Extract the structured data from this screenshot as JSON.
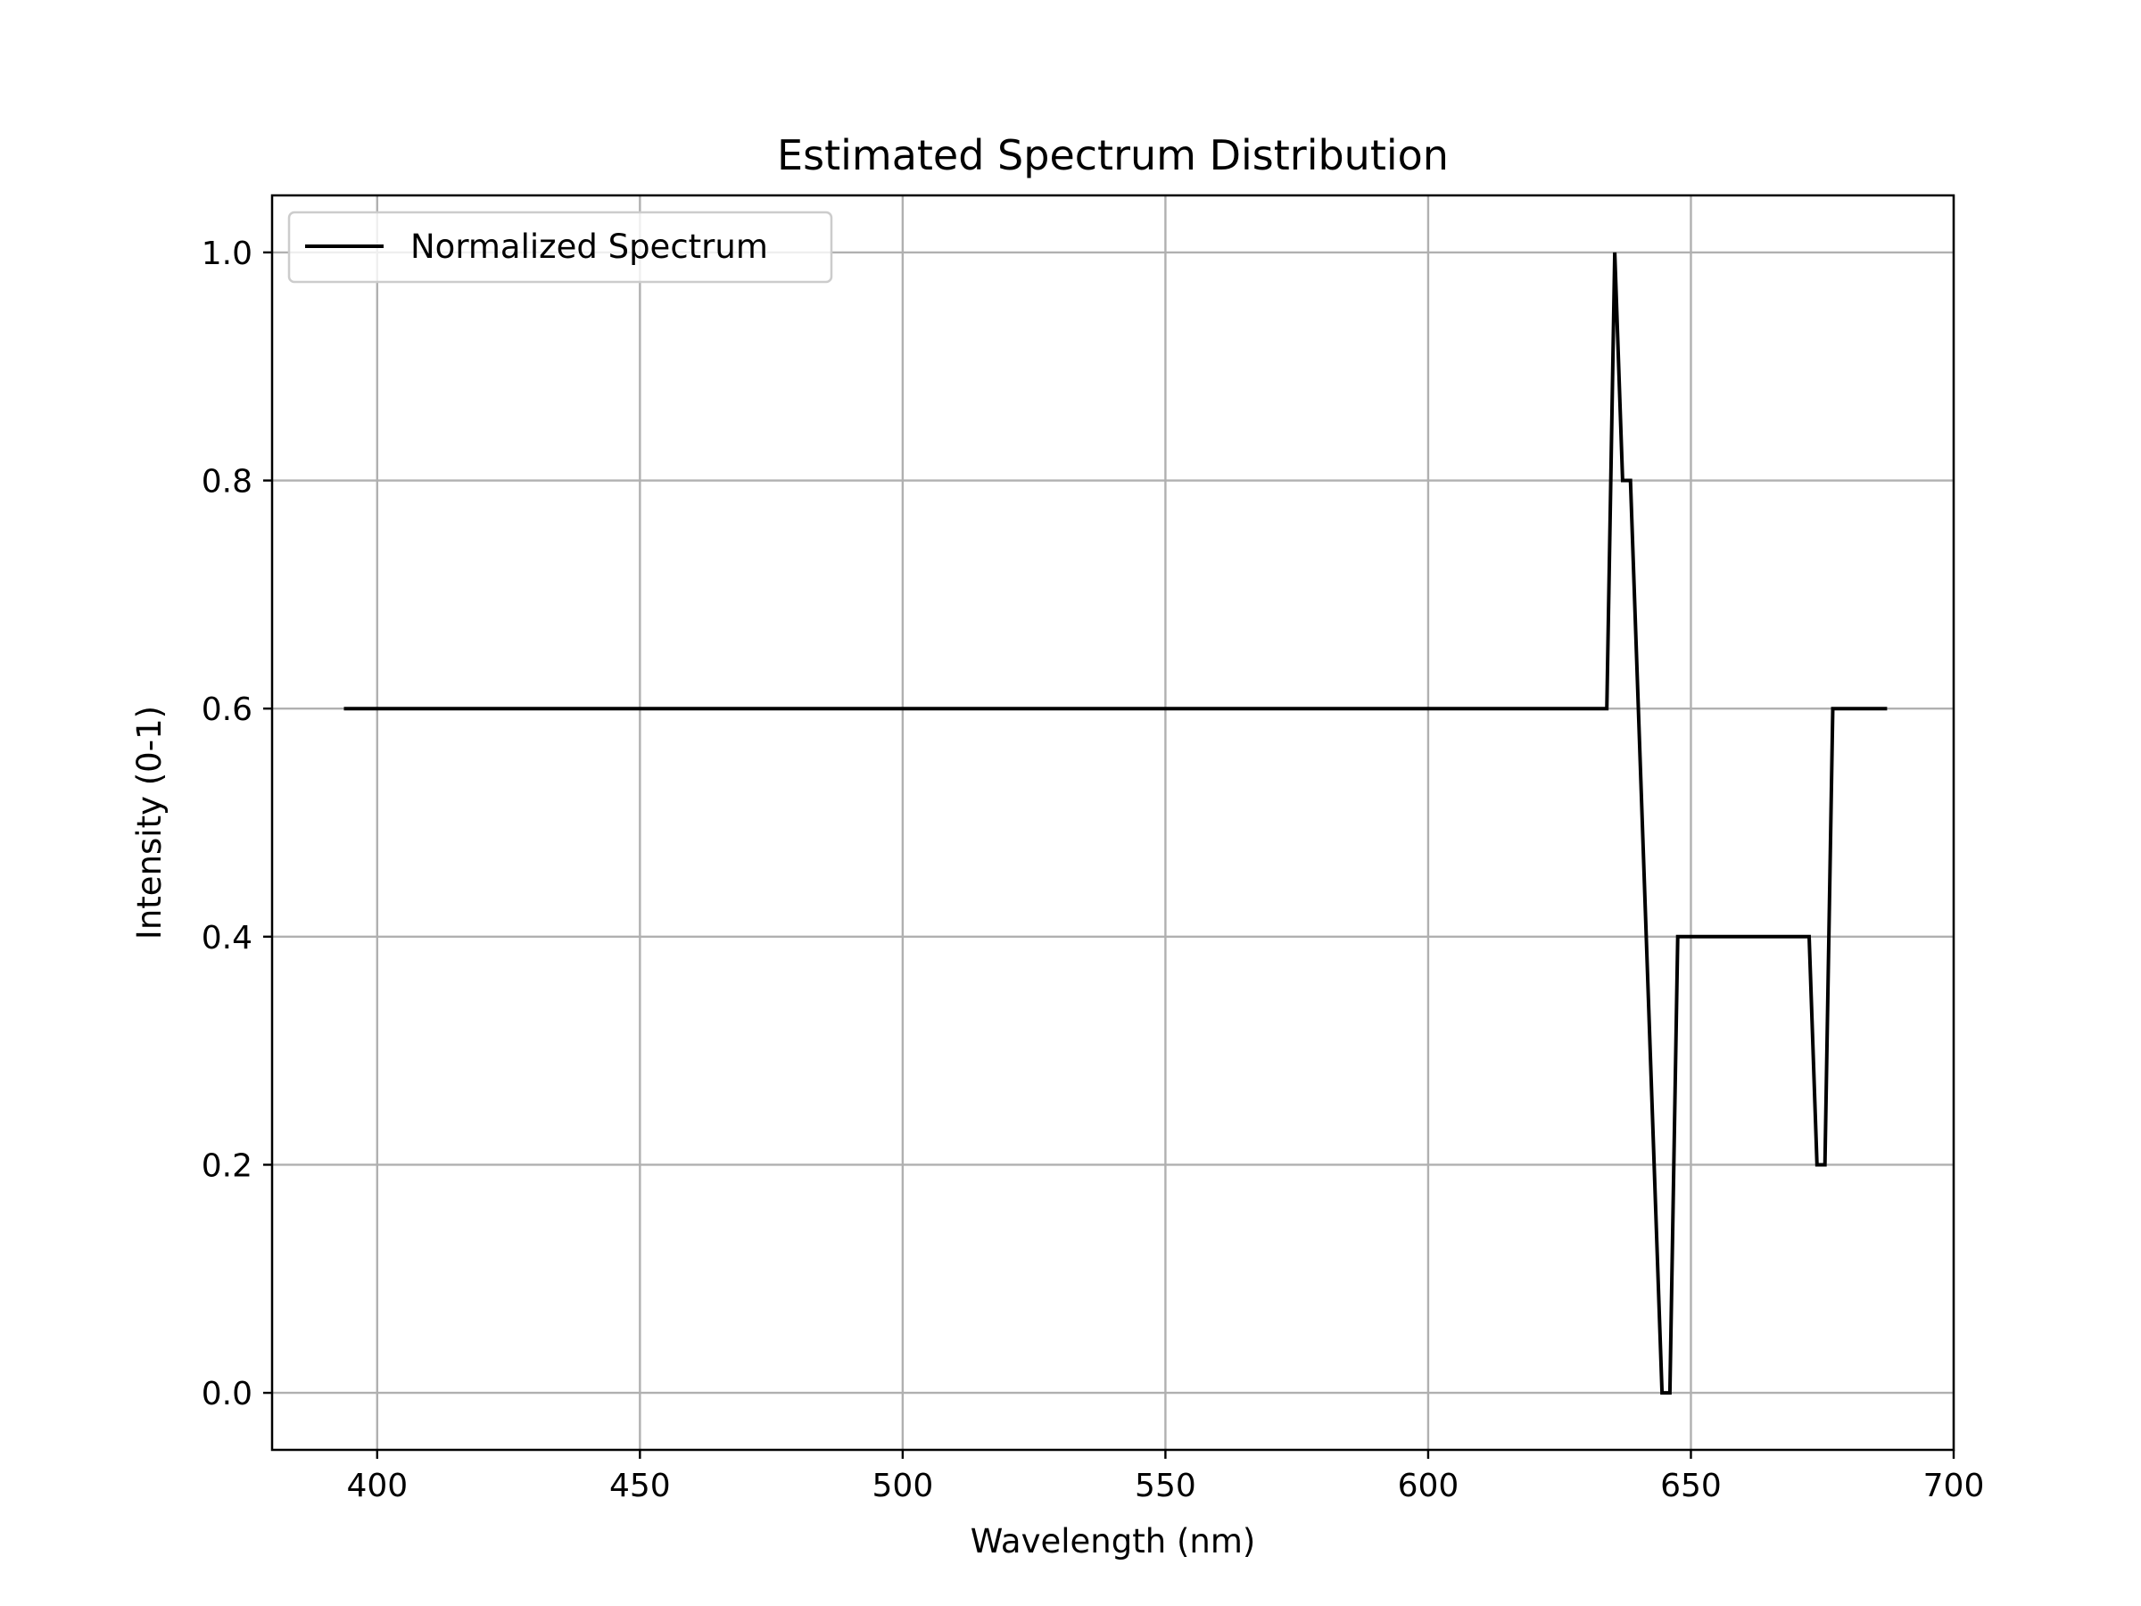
{
  "chart_data": {
    "type": "line",
    "title": "Estimated Spectrum Distribution",
    "xlabel": "Wavelength (nm)",
    "ylabel": "Intensity (0-1)",
    "xlim": [
      380,
      700
    ],
    "ylim": [
      -0.05,
      1.05
    ],
    "xticks": [
      400,
      450,
      500,
      550,
      600,
      650,
      700
    ],
    "yticks": [
      0.0,
      0.2,
      0.4,
      0.6,
      0.8,
      1.0
    ],
    "xtick_labels": [
      "400",
      "450",
      "500",
      "550",
      "600",
      "650",
      "700"
    ],
    "ytick_labels": [
      "0.0",
      "0.2",
      "0.4",
      "0.6",
      "0.8",
      "1.0"
    ],
    "grid": true,
    "legend_position": "upper-left",
    "series": [
      {
        "name": "Normalized Spectrum",
        "color": "#000000",
        "x": [
          394,
          634,
          635.5,
          637,
          638.5,
          644.5,
          646,
          647.5,
          672.5,
          674,
          675.5,
          677,
          687
        ],
        "y": [
          0.6,
          0.6,
          1.0,
          0.8,
          0.8,
          0.0,
          0.0,
          0.4,
          0.4,
          0.2,
          0.2,
          0.6,
          0.6
        ]
      }
    ]
  }
}
